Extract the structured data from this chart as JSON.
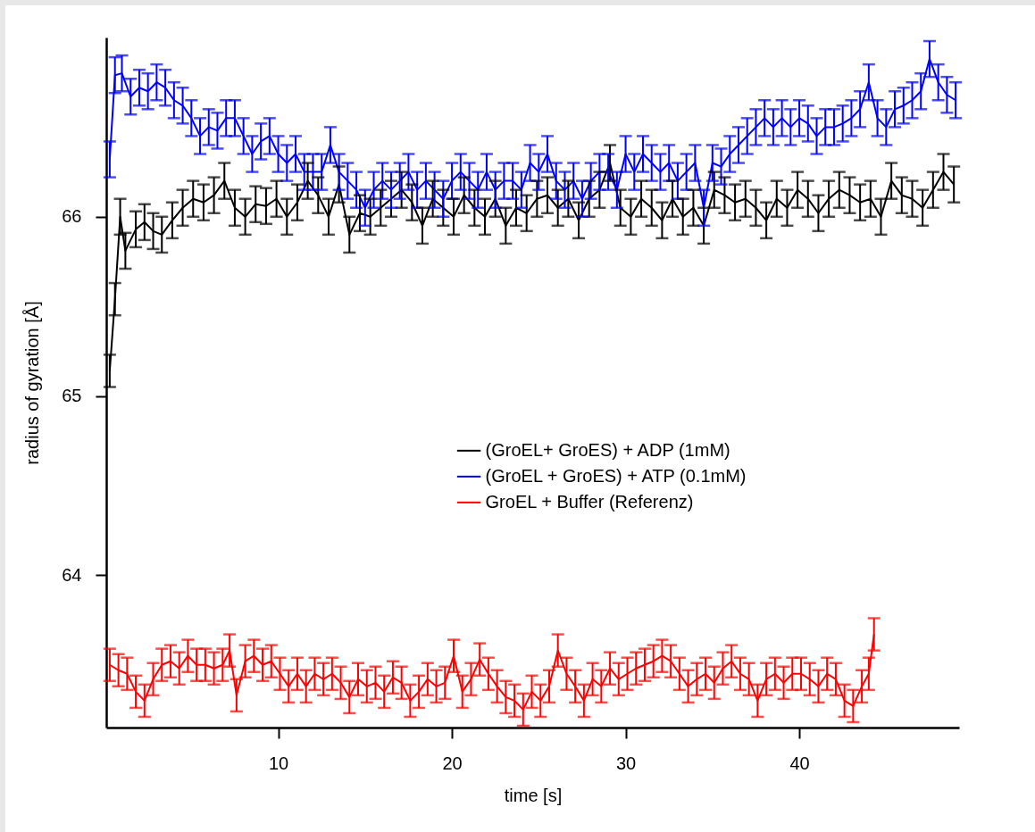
{
  "chart_data": {
    "type": "line",
    "xlabel": "time [s]",
    "ylabel": "radius of gyration [Å]",
    "xlim": [
      0.1,
      49.2
    ],
    "xticks": [
      10,
      20,
      30,
      40
    ],
    "ylim": [
      63.15,
      67.0
    ],
    "yticks": [
      64,
      65,
      66
    ],
    "grid": false,
    "legend": "right",
    "marker": "none",
    "line_style": "solid",
    "series": [
      {
        "name": "(GroEL+ GroES) + ADP (1mM)",
        "color": "#000000",
        "x": [
          0.3,
          0.6,
          0.9,
          1.2,
          1.8,
          2.3,
          2.8,
          3.3,
          3.9,
          4.5,
          5.1,
          5.7,
          6.3,
          6.9,
          7.5,
          8.1,
          8.7,
          9.3,
          9.9,
          10.5,
          11.1,
          11.7,
          12.3,
          12.9,
          13.5,
          14.1,
          14.7,
          15.3,
          15.9,
          16.5,
          17.1,
          17.7,
          18.3,
          18.9,
          19.5,
          20.1,
          20.7,
          21.3,
          21.9,
          22.5,
          23.1,
          23.7,
          24.3,
          24.9,
          25.5,
          26.1,
          26.7,
          27.3,
          27.9,
          28.5,
          29.1,
          29.7,
          30.3,
          30.9,
          31.5,
          32.1,
          32.7,
          33.3,
          33.9,
          34.5,
          35.1,
          35.7,
          36.3,
          36.9,
          37.5,
          38.1,
          38.7,
          39.3,
          39.9,
          40.5,
          41.1,
          41.7,
          42.3,
          42.9,
          43.5,
          44.1,
          44.7,
          45.3,
          45.9,
          46.5,
          47.1,
          47.7,
          48.3,
          48.9
        ],
        "values": [
          65.14,
          65.54,
          66.0,
          65.81,
          65.93,
          65.97,
          65.92,
          65.9,
          65.98,
          66.05,
          66.1,
          66.08,
          66.12,
          66.2,
          66.05,
          66.0,
          66.07,
          66.06,
          66.1,
          66.0,
          66.08,
          66.2,
          66.12,
          66.0,
          66.18,
          65.9,
          66.02,
          66.0,
          66.05,
          66.1,
          66.15,
          66.08,
          65.95,
          66.1,
          66.05,
          66.0,
          66.12,
          66.05,
          66.0,
          66.1,
          65.95,
          66.05,
          66.02,
          66.1,
          66.12,
          66.05,
          66.1,
          65.98,
          66.1,
          66.15,
          66.3,
          66.05,
          66.0,
          66.1,
          66.05,
          65.98,
          66.1,
          66.0,
          66.05,
          65.95,
          66.15,
          66.12,
          66.08,
          66.1,
          66.05,
          65.98,
          66.1,
          66.05,
          66.15,
          66.1,
          66.02,
          66.1,
          66.15,
          66.12,
          66.08,
          66.1,
          66.0,
          66.2,
          66.12,
          66.1,
          66.05,
          66.15,
          66.25,
          66.18
        ],
        "errors": [
          0.09,
          0.09,
          0.1,
          0.1,
          0.1,
          0.1,
          0.1,
          0.1,
          0.1,
          0.1,
          0.1,
          0.1,
          0.1,
          0.1,
          0.1,
          0.1,
          0.1,
          0.1,
          0.1,
          0.1,
          0.1,
          0.1,
          0.1,
          0.1,
          0.1,
          0.1,
          0.1,
          0.1,
          0.1,
          0.1,
          0.1,
          0.1,
          0.1,
          0.1,
          0.1,
          0.1,
          0.1,
          0.1,
          0.1,
          0.1,
          0.1,
          0.1,
          0.1,
          0.1,
          0.1,
          0.1,
          0.1,
          0.1,
          0.1,
          0.1,
          0.1,
          0.1,
          0.1,
          0.1,
          0.1,
          0.1,
          0.1,
          0.1,
          0.1,
          0.1,
          0.1,
          0.1,
          0.1,
          0.1,
          0.1,
          0.1,
          0.1,
          0.1,
          0.1,
          0.1,
          0.1,
          0.1,
          0.1,
          0.1,
          0.1,
          0.1,
          0.1,
          0.1,
          0.1,
          0.1,
          0.1,
          0.1,
          0.1,
          0.1
        ]
      },
      {
        "name": "(GroEL + GroES) + ATP (0.1mM)",
        "color": "#0000ff",
        "x": [
          0.3,
          0.6,
          1.0,
          1.5,
          2.0,
          2.5,
          3.0,
          3.5,
          4.0,
          4.5,
          5.0,
          5.5,
          6.0,
          6.5,
          7.0,
          7.5,
          8.0,
          8.5,
          9.0,
          9.5,
          10.0,
          10.5,
          11.0,
          11.5,
          12.0,
          12.5,
          13.0,
          13.5,
          14.0,
          14.5,
          15.0,
          15.5,
          16.0,
          16.5,
          17.0,
          17.5,
          18.0,
          18.5,
          19.0,
          19.5,
          20.0,
          20.5,
          21.0,
          21.5,
          22.0,
          22.5,
          23.0,
          23.5,
          24.0,
          24.5,
          25.0,
          25.5,
          26.0,
          26.5,
          27.0,
          27.5,
          28.0,
          28.5,
          29.0,
          29.5,
          30.0,
          30.5,
          31.0,
          31.5,
          32.0,
          32.5,
          33.0,
          33.5,
          34.0,
          34.5,
          35.0,
          35.5,
          36.0,
          36.5,
          37.0,
          37.5,
          38.0,
          38.5,
          39.0,
          39.5,
          40.0,
          40.5,
          41.0,
          41.5,
          42.0,
          42.5,
          43.0,
          43.5,
          44.0,
          44.5,
          45.0,
          45.5,
          46.0,
          46.5,
          47.0,
          47.5,
          48.0,
          48.5,
          49.0
        ],
        "values": [
          66.32,
          66.79,
          66.8,
          66.67,
          66.72,
          66.7,
          66.75,
          66.72,
          66.65,
          66.62,
          66.55,
          66.45,
          66.5,
          66.48,
          66.55,
          66.55,
          66.45,
          66.35,
          66.42,
          66.45,
          66.35,
          66.3,
          66.35,
          66.25,
          66.25,
          66.25,
          66.4,
          66.25,
          66.2,
          66.15,
          66.05,
          66.15,
          66.2,
          66.15,
          66.2,
          66.25,
          66.15,
          66.2,
          66.15,
          66.1,
          66.2,
          66.25,
          66.2,
          66.15,
          66.25,
          66.15,
          66.2,
          66.2,
          66.15,
          66.3,
          66.25,
          66.35,
          66.2,
          66.15,
          66.2,
          66.1,
          66.2,
          66.25,
          66.25,
          66.15,
          66.35,
          66.25,
          66.35,
          66.3,
          66.25,
          66.3,
          66.2,
          66.25,
          66.3,
          66.05,
          66.3,
          66.28,
          66.35,
          66.4,
          66.45,
          66.5,
          66.55,
          66.5,
          66.55,
          66.5,
          66.55,
          66.52,
          66.45,
          66.5,
          66.5,
          66.52,
          66.55,
          66.6,
          66.75,
          66.55,
          66.5,
          66.6,
          66.62,
          66.65,
          66.7,
          66.88,
          66.75,
          66.68,
          66.65
        ],
        "errors": [
          0.1,
          0.1,
          0.1,
          0.1,
          0.1,
          0.1,
          0.1,
          0.1,
          0.1,
          0.1,
          0.1,
          0.1,
          0.1,
          0.1,
          0.1,
          0.1,
          0.1,
          0.1,
          0.1,
          0.1,
          0.1,
          0.1,
          0.1,
          0.1,
          0.1,
          0.1,
          0.1,
          0.1,
          0.1,
          0.1,
          0.1,
          0.1,
          0.1,
          0.1,
          0.1,
          0.1,
          0.1,
          0.1,
          0.1,
          0.1,
          0.1,
          0.1,
          0.1,
          0.1,
          0.1,
          0.1,
          0.1,
          0.1,
          0.1,
          0.1,
          0.1,
          0.1,
          0.1,
          0.1,
          0.1,
          0.1,
          0.1,
          0.1,
          0.1,
          0.1,
          0.1,
          0.1,
          0.1,
          0.1,
          0.1,
          0.1,
          0.1,
          0.1,
          0.1,
          0.1,
          0.1,
          0.1,
          0.1,
          0.1,
          0.1,
          0.1,
          0.1,
          0.1,
          0.1,
          0.1,
          0.1,
          0.1,
          0.1,
          0.1,
          0.1,
          0.1,
          0.1,
          0.1,
          0.1,
          0.1,
          0.1,
          0.1,
          0.1,
          0.1,
          0.1,
          0.1,
          0.1,
          0.1,
          0.1
        ]
      },
      {
        "name": "GroEL + Buffer (Referenz)",
        "color": "#ff0000",
        "x": [
          0.3,
          0.8,
          1.3,
          1.8,
          2.3,
          2.8,
          3.3,
          3.8,
          4.3,
          4.8,
          5.3,
          5.8,
          6.3,
          6.8,
          7.2,
          7.6,
          8.1,
          8.6,
          9.1,
          9.6,
          10.1,
          10.6,
          11.1,
          11.6,
          12.1,
          12.6,
          13.1,
          13.6,
          14.1,
          14.6,
          15.1,
          15.6,
          16.1,
          16.6,
          17.1,
          17.6,
          18.1,
          18.6,
          19.1,
          19.6,
          20.1,
          20.6,
          21.1,
          21.6,
          22.1,
          22.6,
          23.1,
          23.6,
          24.1,
          24.6,
          25.1,
          25.6,
          26.1,
          26.6,
          27.1,
          27.6,
          28.1,
          28.6,
          29.1,
          29.6,
          30.1,
          30.6,
          31.1,
          31.6,
          32.1,
          32.6,
          33.1,
          33.6,
          34.1,
          34.6,
          35.1,
          35.6,
          36.1,
          36.6,
          37.1,
          37.6,
          38.1,
          38.6,
          39.1,
          39.6,
          40.1,
          40.6,
          41.1,
          41.6,
          42.1,
          42.6,
          43.1,
          43.6,
          44.0,
          44.3
        ],
        "values": [
          63.5,
          63.47,
          63.45,
          63.35,
          63.3,
          63.42,
          63.5,
          63.52,
          63.48,
          63.55,
          63.5,
          63.5,
          63.48,
          63.5,
          63.58,
          63.33,
          63.52,
          63.55,
          63.5,
          63.52,
          63.45,
          63.38,
          63.45,
          63.38,
          63.45,
          63.42,
          63.45,
          63.4,
          63.32,
          63.42,
          63.38,
          63.4,
          63.35,
          63.43,
          63.4,
          63.3,
          63.35,
          63.42,
          63.38,
          63.4,
          63.55,
          63.35,
          63.42,
          63.53,
          63.45,
          63.38,
          63.32,
          63.3,
          63.25,
          63.35,
          63.3,
          63.38,
          63.58,
          63.45,
          63.38,
          63.3,
          63.42,
          63.38,
          63.48,
          63.42,
          63.45,
          63.48,
          63.5,
          63.52,
          63.55,
          63.52,
          63.45,
          63.38,
          63.42,
          63.45,
          63.4,
          63.48,
          63.52,
          63.45,
          63.42,
          63.3,
          63.42,
          63.45,
          63.4,
          63.45,
          63.45,
          63.42,
          63.38,
          63.45,
          63.42,
          63.3,
          63.27,
          63.38,
          63.45,
          63.67
        ],
        "errors": [
          0.09,
          0.09,
          0.09,
          0.09,
          0.09,
          0.09,
          0.09,
          0.09,
          0.09,
          0.09,
          0.09,
          0.09,
          0.09,
          0.09,
          0.09,
          0.09,
          0.09,
          0.09,
          0.09,
          0.09,
          0.09,
          0.09,
          0.09,
          0.09,
          0.09,
          0.09,
          0.09,
          0.09,
          0.09,
          0.09,
          0.09,
          0.09,
          0.09,
          0.09,
          0.09,
          0.09,
          0.09,
          0.09,
          0.09,
          0.09,
          0.09,
          0.09,
          0.09,
          0.09,
          0.09,
          0.09,
          0.09,
          0.09,
          0.09,
          0.09,
          0.09,
          0.09,
          0.09,
          0.09,
          0.09,
          0.09,
          0.09,
          0.09,
          0.09,
          0.09,
          0.09,
          0.09,
          0.09,
          0.09,
          0.09,
          0.09,
          0.09,
          0.09,
          0.09,
          0.09,
          0.09,
          0.09,
          0.09,
          0.09,
          0.09,
          0.09,
          0.09,
          0.09,
          0.09,
          0.09,
          0.09,
          0.09,
          0.09,
          0.09,
          0.09,
          0.09,
          0.09,
          0.09,
          0.09,
          0.09
        ]
      }
    ]
  }
}
